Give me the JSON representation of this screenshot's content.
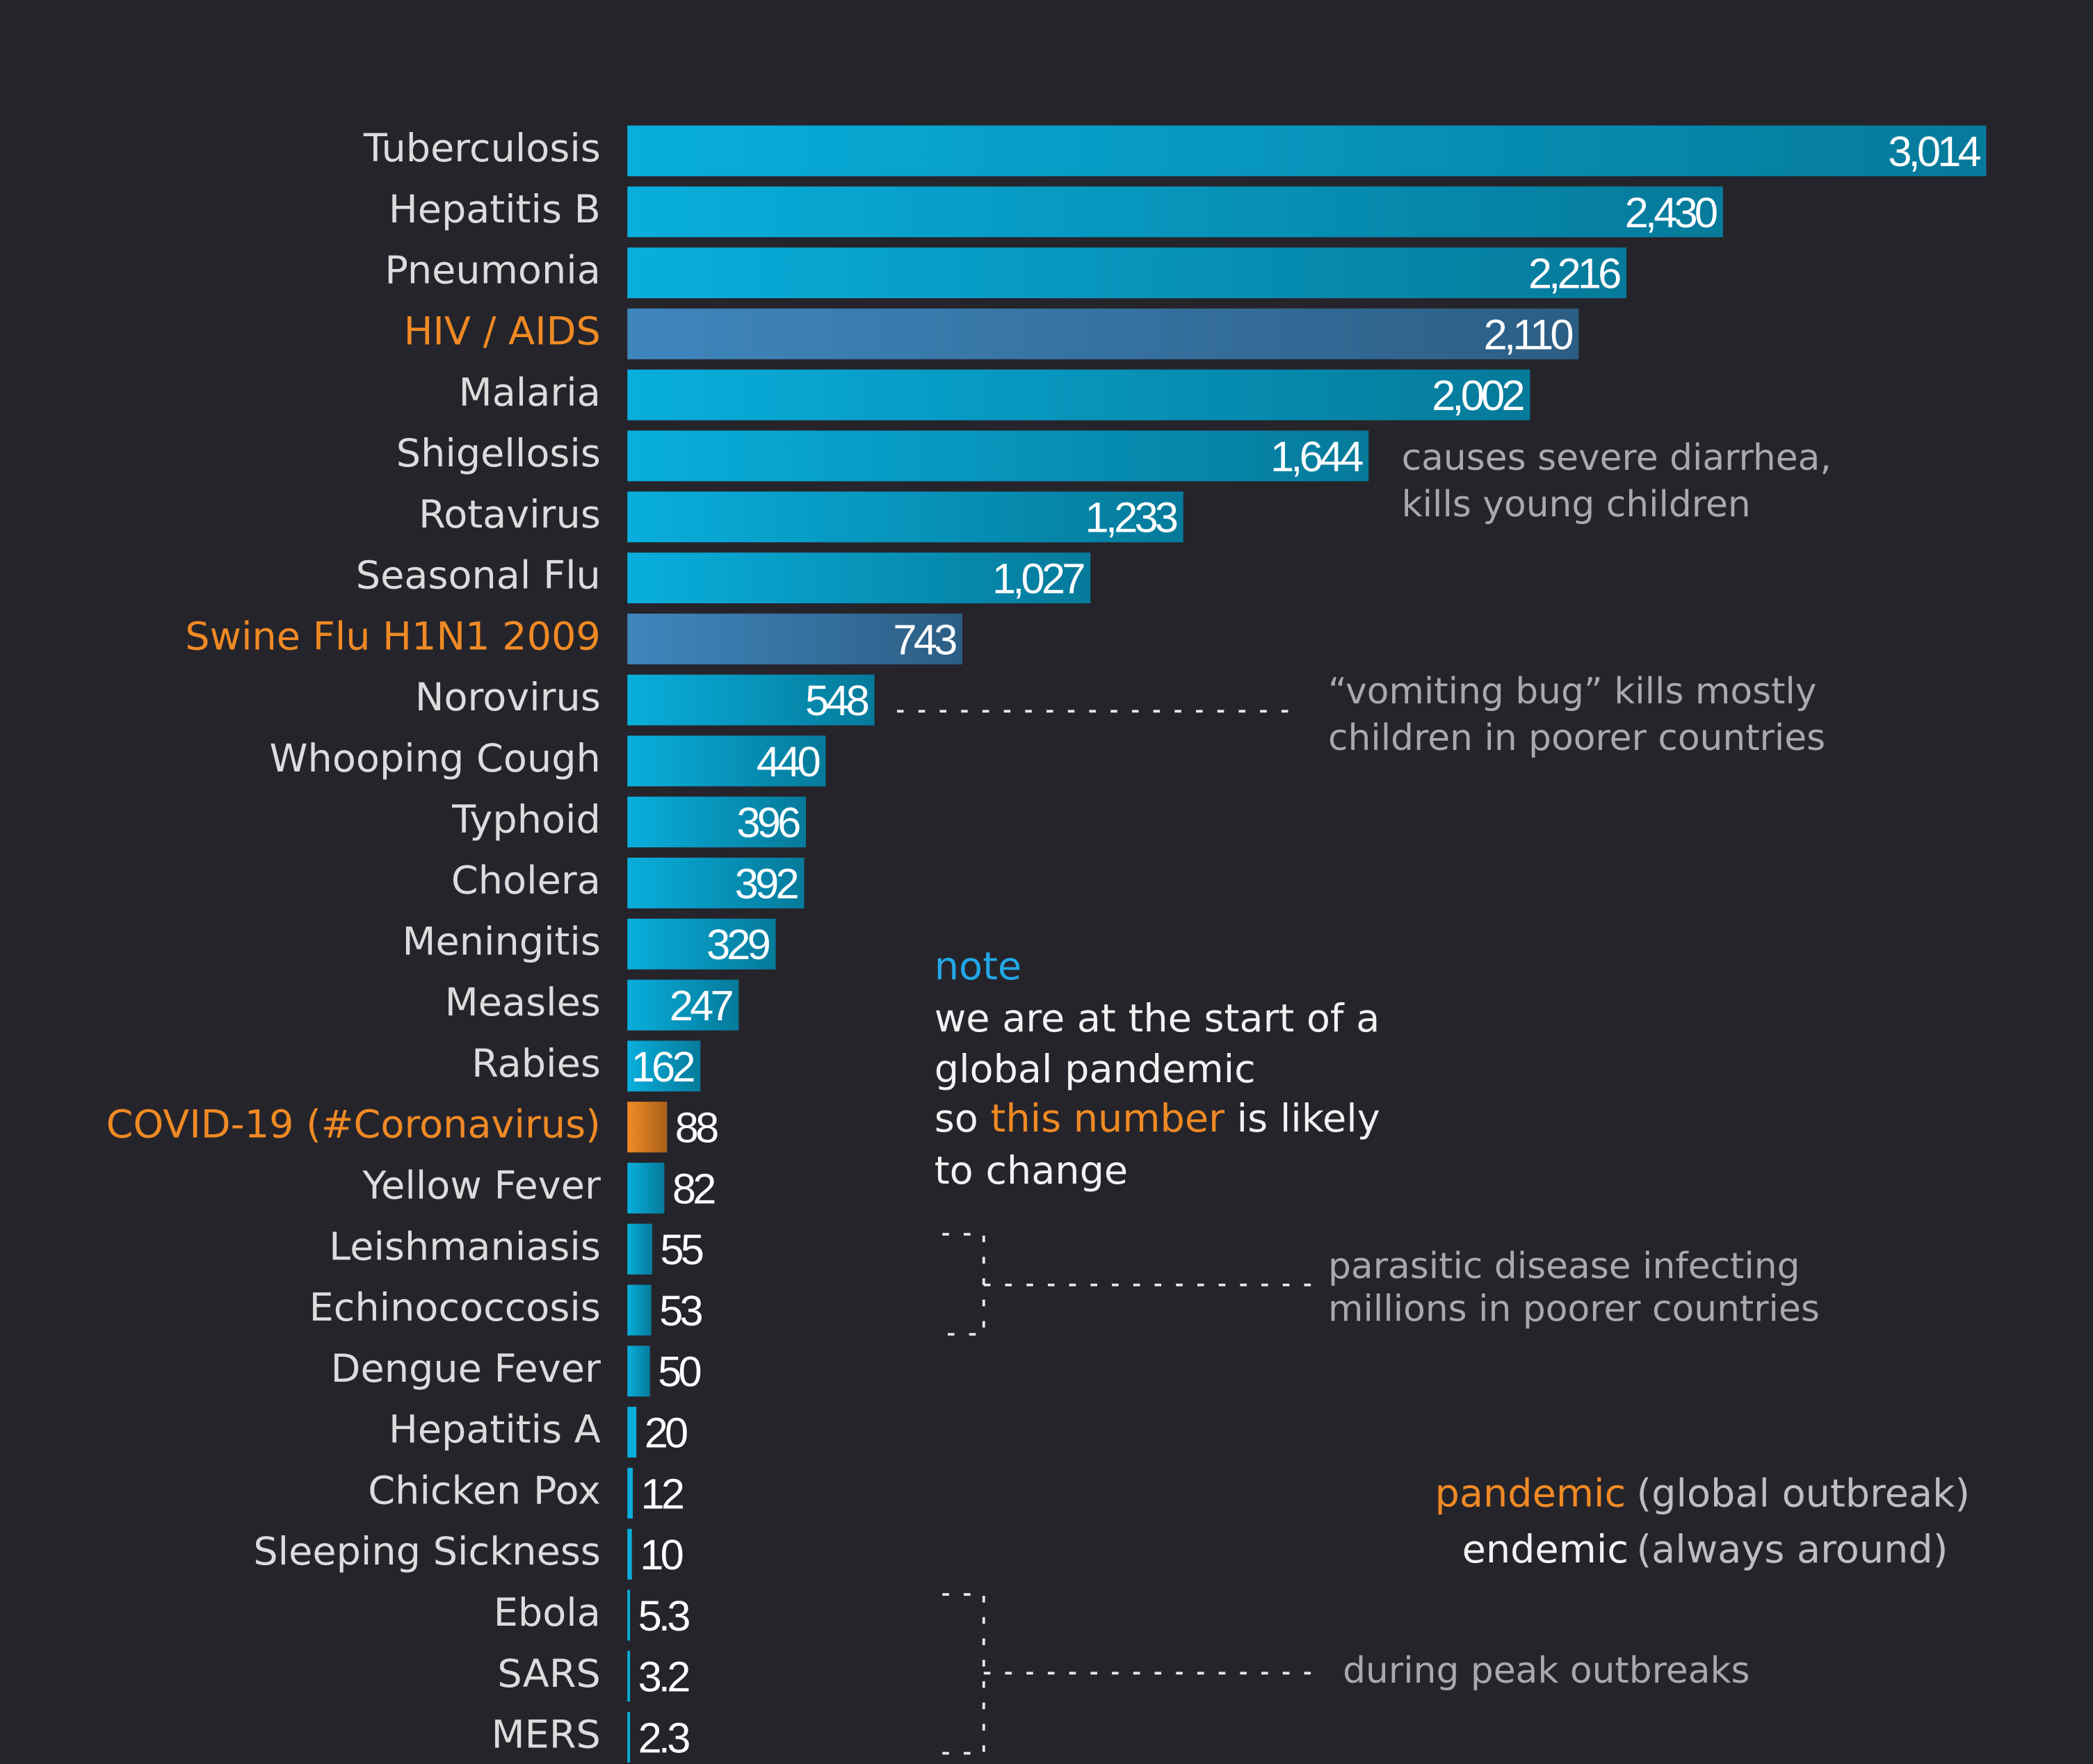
{
  "chart_data": {
    "type": "bar",
    "orientation": "horizontal",
    "categories": [
      "Tuberculosis",
      "Hepatitis B",
      "Pneumonia",
      "HIV / AIDS",
      "Malaria",
      "Shigellosis",
      "Rotavirus",
      "Seasonal Flu",
      "Swine Flu H1N1 2009",
      "Norovirus",
      "Whooping Cough",
      "Typhoid",
      "Cholera",
      "Meningitis",
      "Measles",
      "Rabies",
      "COVID-19 (#Coronavirus)",
      "Yellow Fever",
      "Leishmaniasis",
      "Echinococcosis",
      "Dengue Fever",
      "Hepatitis A",
      "Chicken Pox",
      "Sleeping Sickness",
      "Ebola",
      "SARS",
      "MERS"
    ],
    "values": [
      3014,
      2430,
      2216,
      2110,
      2002,
      1644,
      1233,
      1027,
      743,
      548,
      440,
      396,
      392,
      329,
      247,
      162,
      88,
      82,
      55,
      53,
      50,
      20,
      12,
      10,
      5.3,
      3.2,
      2.3
    ],
    "value_labels": [
      "3,014",
      "2,430",
      "2,216",
      "2,110",
      "2,002",
      "1,644",
      "1,233",
      "1,027",
      "743",
      "548",
      "440",
      "396",
      "392",
      "329",
      "247",
      "162",
      "88",
      "82",
      "55",
      "53",
      "50",
      "20",
      "12",
      "10",
      "5.3",
      "3.2",
      "2.3"
    ],
    "bar_colors": [
      "#08aedc",
      "#08aedc",
      "#08aedc",
      "#3f86bd",
      "#08aedc",
      "#08aedc",
      "#08aedc",
      "#08aedc",
      "#3f86bd",
      "#08aedc",
      "#08aedc",
      "#08aedc",
      "#08aedc",
      "#08aedc",
      "#08aedc",
      "#08aedc",
      "#f08a24",
      "#08aedc",
      "#08aedc",
      "#08aedc",
      "#08aedc",
      "#08aedc",
      "#08aedc",
      "#08aedc",
      "#08aedc",
      "#08aedc",
      "#08aedc"
    ],
    "label_colors": [
      "#dcdcdc",
      "#dcdcdc",
      "#dcdcdc",
      "#f08a24",
      "#dcdcdc",
      "#dcdcdc",
      "#dcdcdc",
      "#dcdcdc",
      "#f08a24",
      "#dcdcdc",
      "#dcdcdc",
      "#dcdcdc",
      "#dcdcdc",
      "#dcdcdc",
      "#dcdcdc",
      "#dcdcdc",
      "#f08a24",
      "#dcdcdc",
      "#dcdcdc",
      "#dcdcdc",
      "#dcdcdc",
      "#dcdcdc",
      "#dcdcdc",
      "#dcdcdc",
      "#dcdcdc",
      "#dcdcdc",
      "#dcdcdc"
    ],
    "xlim": [
      0,
      3014
    ],
    "annotations": {
      "shigellosis": [
        "causes severe diarrhea,",
        "kills young children"
      ],
      "norovirus": [
        "“vomiting bug” kills mostly",
        "children in poorer countries"
      ],
      "note": {
        "heading": "note",
        "line1": "we are at the start of a",
        "line2": "global pandemic",
        "line3a": "so",
        "line3b": "this number",
        "line3c": "is likely",
        "line4": "to change"
      },
      "parasitic": [
        "parasitic disease infecting",
        "millions in poorer countries"
      ],
      "outbreaks": "during peak outbreaks"
    },
    "legend": {
      "pandemic": "pandemic",
      "pandemic_desc": "(global outbreak)",
      "endemic": "endemic",
      "endemic_desc": "(always around)"
    }
  }
}
